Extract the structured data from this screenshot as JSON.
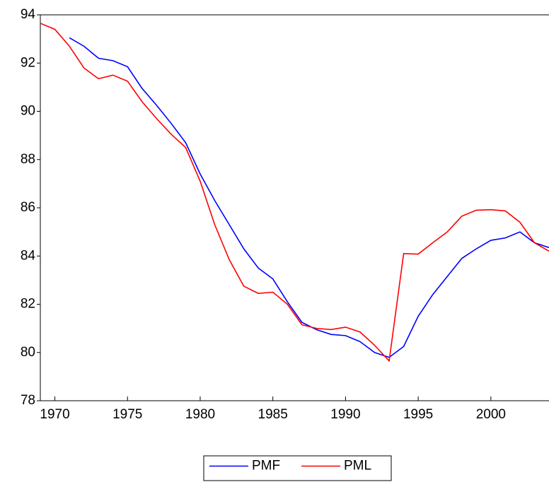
{
  "chart_data": {
    "type": "line",
    "x": [
      1969,
      1970,
      1971,
      1972,
      1973,
      1974,
      1975,
      1976,
      1977,
      1978,
      1979,
      1980,
      1981,
      1982,
      1983,
      1984,
      1985,
      1986,
      1987,
      1988,
      1989,
      1990,
      1991,
      1992,
      1993,
      1994,
      1995,
      1996,
      1997,
      1998,
      1999,
      2000,
      2001,
      2002,
      2003,
      2004
    ],
    "series": [
      {
        "name": "PMF",
        "color": "#0000ff",
        "values": [
          null,
          null,
          93.05,
          92.7,
          92.2,
          92.1,
          91.85,
          90.95,
          90.25,
          89.5,
          88.7,
          87.4,
          86.3,
          85.3,
          84.3,
          83.5,
          83.05,
          82.1,
          81.25,
          80.95,
          80.75,
          80.7,
          80.45,
          80.0,
          79.8,
          80.25,
          81.5,
          82.4,
          83.15,
          83.9,
          84.3,
          84.65,
          84.75,
          85.0,
          84.55,
          84.35
        ]
      },
      {
        "name": "PML",
        "color": "#ff0000",
        "values": [
          93.65,
          93.4,
          92.7,
          91.8,
          91.35,
          91.5,
          91.25,
          90.4,
          89.7,
          89.05,
          88.5,
          87.1,
          85.3,
          83.85,
          82.75,
          82.45,
          82.5,
          82.0,
          81.15,
          81.0,
          80.95,
          81.05,
          80.85,
          80.3,
          79.65,
          84.1,
          84.08,
          84.55,
          85.0,
          85.65,
          85.9,
          85.92,
          85.87,
          85.4,
          84.55,
          84.2
        ]
      }
    ],
    "xlim": [
      1969,
      2004
    ],
    "xticks": [
      1970,
      1975,
      1980,
      1985,
      1990,
      1995,
      2000
    ],
    "ylim": [
      78,
      94
    ],
    "yticks": [
      78,
      80,
      82,
      84,
      86,
      88,
      90,
      92,
      94
    ],
    "legend": "bottom"
  }
}
